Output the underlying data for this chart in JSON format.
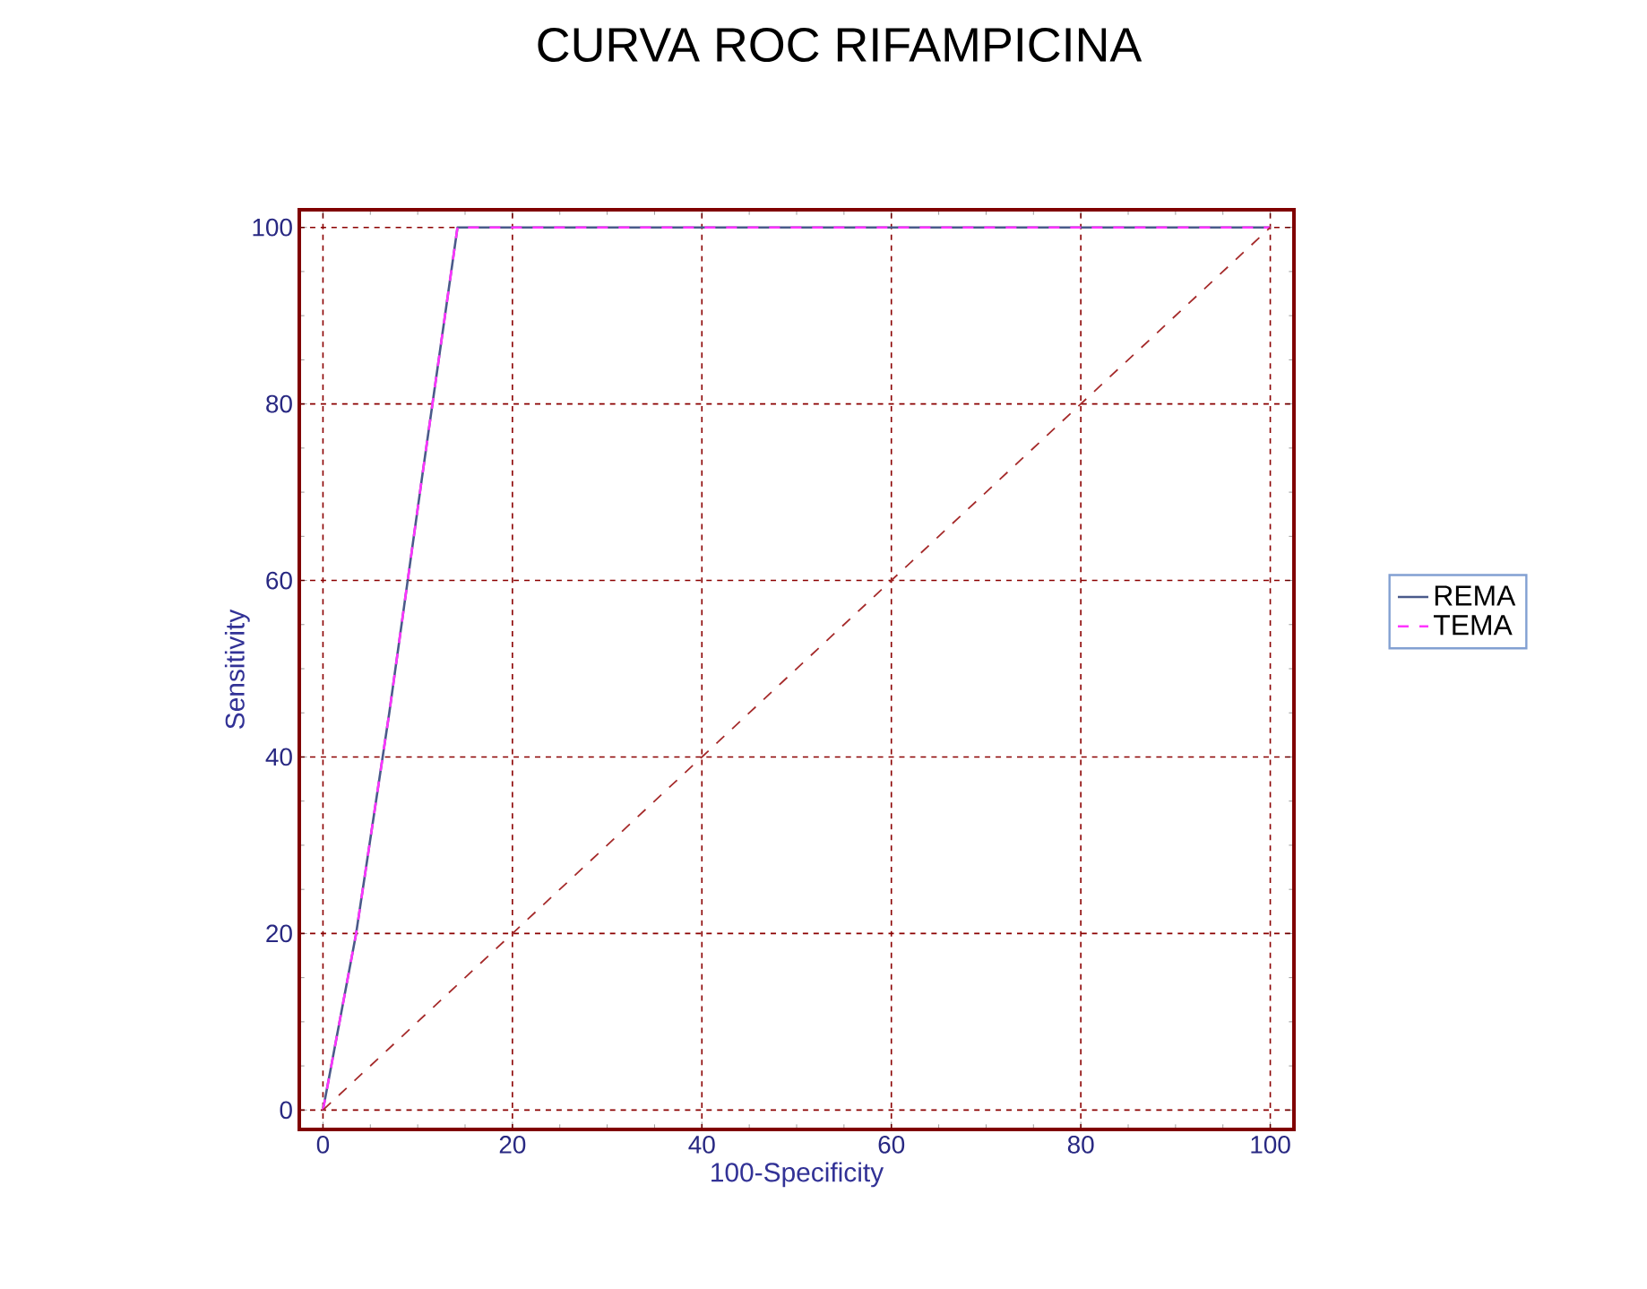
{
  "chart_data": {
    "type": "line",
    "title": "CURVA ROC RIFAMPICINA",
    "xlabel": "100-Specificity",
    "ylabel": "Sensitivity",
    "xlim": [
      -2.5,
      102.5
    ],
    "ylim": [
      -2.2,
      102
    ],
    "xticks": [
      0,
      20,
      40,
      60,
      80,
      100
    ],
    "yticks": [
      0,
      20,
      40,
      60,
      80,
      100
    ],
    "grid": true,
    "legend": "right",
    "marker": "none",
    "series": [
      {
        "name": "REMA",
        "color": "#4a5a8a",
        "x": [
          0,
          3.5,
          7,
          10.5,
          14.2,
          100
        ],
        "values": [
          0,
          20,
          45,
          72,
          100,
          100
        ]
      },
      {
        "name": "TEMA",
        "color": "#ff33ff",
        "line_style": "dashed",
        "x": [
          0,
          3.5,
          7,
          10.5,
          14.2,
          100
        ],
        "values": [
          0,
          20,
          45,
          72,
          100,
          100
        ]
      },
      {
        "type": "line",
        "color": "#a52a2a",
        "line_style": "dashed",
        "x": [
          0,
          100
        ],
        "values": [
          0,
          100
        ]
      }
    ]
  }
}
